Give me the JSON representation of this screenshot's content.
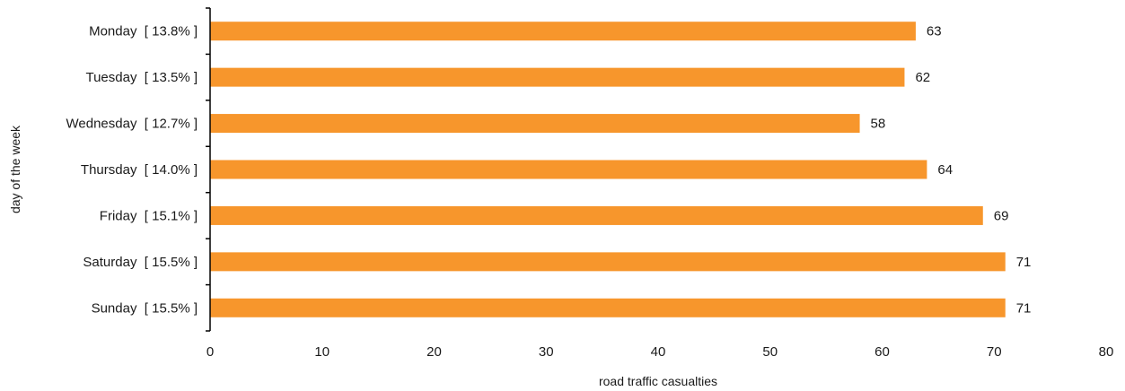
{
  "chart_data": {
    "type": "bar",
    "orientation": "horizontal",
    "categories": [
      "Monday",
      "Tuesday",
      "Wednesday",
      "Thursday",
      "Friday",
      "Saturday",
      "Sunday"
    ],
    "category_labels": [
      "Monday  [ 13.8% ]",
      "Tuesday  [ 13.5% ]",
      "Wednesday  [ 12.7% ]",
      "Thursday  [ 14.0% ]",
      "Friday  [ 15.1% ]",
      "Saturday  [ 15.5% ]",
      "Sunday  [ 15.5% ]"
    ],
    "percentages": [
      13.8,
      13.5,
      12.7,
      14.0,
      15.1,
      15.5,
      15.5
    ],
    "values": [
      63,
      62,
      58,
      64,
      69,
      71,
      71
    ],
    "xlabel": "road traffic casualties",
    "ylabel": "day of the week",
    "xlim": [
      0,
      80
    ],
    "xticks": [
      0,
      10,
      20,
      30,
      40,
      50,
      60,
      70,
      80
    ],
    "grid": false,
    "legend": "none",
    "bar_color": "#F7962C"
  }
}
